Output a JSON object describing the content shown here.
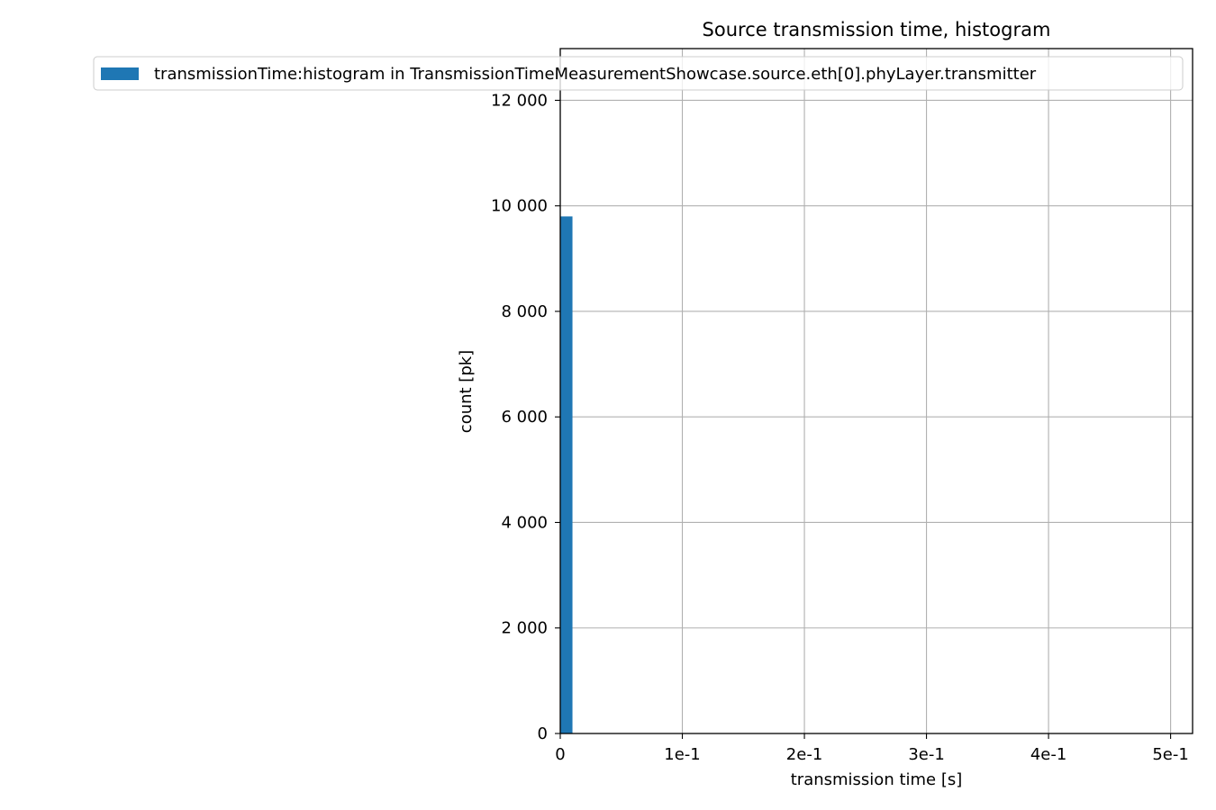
{
  "chart_data": {
    "type": "bar",
    "title": "Source transmission time, histogram",
    "xlabel": "transmission time [s]",
    "ylabel": "count [pk]",
    "xlim": [
      0,
      0.518
    ],
    "ylim": [
      0,
      12980
    ],
    "grid": true,
    "legend_position": "top",
    "x_ticks": [
      {
        "value": 0,
        "label": "0"
      },
      {
        "value": 0.1,
        "label": "1e-1"
      },
      {
        "value": 0.2,
        "label": "2e-1"
      },
      {
        "value": 0.3,
        "label": "3e-1"
      },
      {
        "value": 0.4,
        "label": "4e-1"
      },
      {
        "value": 0.5,
        "label": "5e-1"
      }
    ],
    "y_ticks": [
      {
        "value": 0,
        "label": "0"
      },
      {
        "value": 2000,
        "label": "2 000"
      },
      {
        "value": 4000,
        "label": "4 000"
      },
      {
        "value": 6000,
        "label": "6 000"
      },
      {
        "value": 8000,
        "label": "8 000"
      },
      {
        "value": 10000,
        "label": "10 000"
      },
      {
        "value": 12000,
        "label": "12 000"
      }
    ],
    "series": [
      {
        "name": "transmissionTime:histogram in TransmissionTimeMeasurementShowcase.source.eth[0].phyLayer.transmitter",
        "color": "#1f77b4",
        "bins": [
          {
            "x0": 0,
            "x1": 0.01,
            "count": 9800
          }
        ]
      }
    ]
  }
}
